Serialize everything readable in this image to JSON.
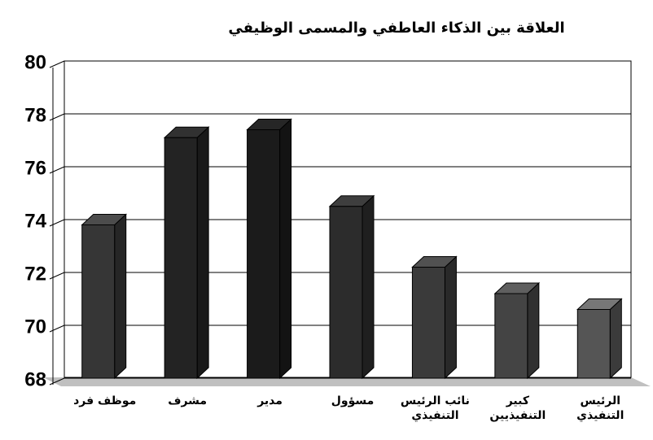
{
  "chart_data": {
    "type": "bar3d",
    "title": "العلاقة بين الذكاء العاطفي والمسمى الوظيفي",
    "categories": [
      "موظف فرد",
      "مشرف",
      "مدير",
      "مسؤول",
      "نائب الرئيس التنفيذي",
      "كبير التنفيذيين",
      "الرئيس التنفيذي"
    ],
    "values": [
      73.8,
      77.1,
      77.4,
      74.5,
      72.2,
      71.2,
      70.6
    ],
    "colors": [
      "#363636",
      "#232323",
      "#1b1b1b",
      "#2c2c2c",
      "#3a3a3a",
      "#444444",
      "#555555"
    ],
    "ylim": [
      68,
      80
    ],
    "yticks": [
      68,
      70,
      72,
      74,
      76,
      78,
      80
    ],
    "grid": true
  }
}
